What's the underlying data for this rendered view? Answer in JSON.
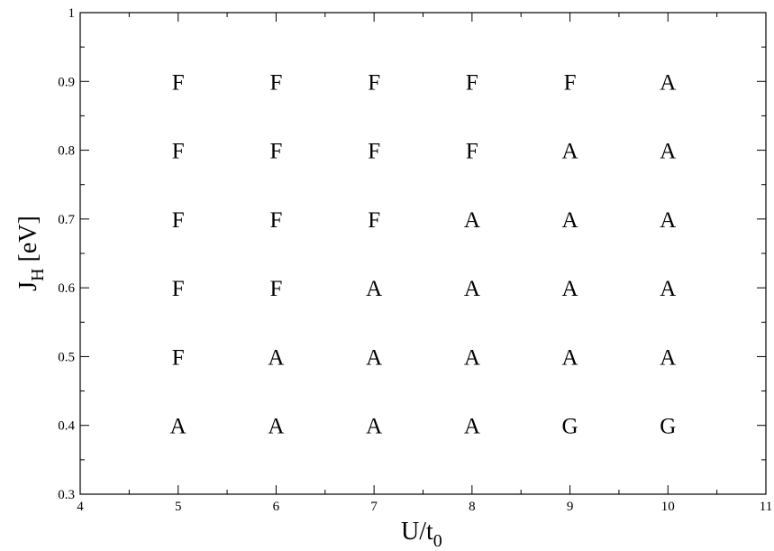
{
  "chart_data": {
    "type": "scatter",
    "title": "",
    "xlabel": {
      "main": "U/t",
      "sub": "0"
    },
    "ylabel": {
      "main": "J",
      "sub": "H",
      "suffix": " [eV]"
    },
    "xlim": [
      4,
      11
    ],
    "ylim": [
      0.3,
      1.0
    ],
    "x_ticks": [
      4,
      5,
      6,
      7,
      8,
      9,
      10,
      11
    ],
    "y_ticks": [
      0.3,
      0.4,
      0.5,
      0.6,
      0.7,
      0.8,
      0.9,
      1.0
    ],
    "x_tick_labels": [
      "4",
      "5",
      "6",
      "7",
      "8",
      "9",
      "10",
      "11"
    ],
    "y_tick_labels": [
      "0.3",
      "0.4",
      "0.5",
      "0.6",
      "0.7",
      "0.8",
      "0.9",
      "1"
    ],
    "grid": false,
    "legend": "none",
    "points": [
      {
        "x": 5,
        "y": 0.9,
        "label": "F"
      },
      {
        "x": 6,
        "y": 0.9,
        "label": "F"
      },
      {
        "x": 7,
        "y": 0.9,
        "label": "F"
      },
      {
        "x": 8,
        "y": 0.9,
        "label": "F"
      },
      {
        "x": 9,
        "y": 0.9,
        "label": "F"
      },
      {
        "x": 10,
        "y": 0.9,
        "label": "A"
      },
      {
        "x": 5,
        "y": 0.8,
        "label": "F"
      },
      {
        "x": 6,
        "y": 0.8,
        "label": "F"
      },
      {
        "x": 7,
        "y": 0.8,
        "label": "F"
      },
      {
        "x": 8,
        "y": 0.8,
        "label": "F"
      },
      {
        "x": 9,
        "y": 0.8,
        "label": "A"
      },
      {
        "x": 10,
        "y": 0.8,
        "label": "A"
      },
      {
        "x": 5,
        "y": 0.7,
        "label": "F"
      },
      {
        "x": 6,
        "y": 0.7,
        "label": "F"
      },
      {
        "x": 7,
        "y": 0.7,
        "label": "F"
      },
      {
        "x": 8,
        "y": 0.7,
        "label": "A"
      },
      {
        "x": 9,
        "y": 0.7,
        "label": "A"
      },
      {
        "x": 10,
        "y": 0.7,
        "label": "A"
      },
      {
        "x": 5,
        "y": 0.6,
        "label": "F"
      },
      {
        "x": 6,
        "y": 0.6,
        "label": "F"
      },
      {
        "x": 7,
        "y": 0.6,
        "label": "A"
      },
      {
        "x": 8,
        "y": 0.6,
        "label": "A"
      },
      {
        "x": 9,
        "y": 0.6,
        "label": "A"
      },
      {
        "x": 10,
        "y": 0.6,
        "label": "A"
      },
      {
        "x": 5,
        "y": 0.5,
        "label": "F"
      },
      {
        "x": 6,
        "y": 0.5,
        "label": "A"
      },
      {
        "x": 7,
        "y": 0.5,
        "label": "A"
      },
      {
        "x": 8,
        "y": 0.5,
        "label": "A"
      },
      {
        "x": 9,
        "y": 0.5,
        "label": "A"
      },
      {
        "x": 10,
        "y": 0.5,
        "label": "A"
      },
      {
        "x": 5,
        "y": 0.4,
        "label": "A"
      },
      {
        "x": 6,
        "y": 0.4,
        "label": "A"
      },
      {
        "x": 7,
        "y": 0.4,
        "label": "A"
      },
      {
        "x": 8,
        "y": 0.4,
        "label": "A"
      },
      {
        "x": 9,
        "y": 0.4,
        "label": "G"
      },
      {
        "x": 10,
        "y": 0.4,
        "label": "G"
      }
    ]
  }
}
